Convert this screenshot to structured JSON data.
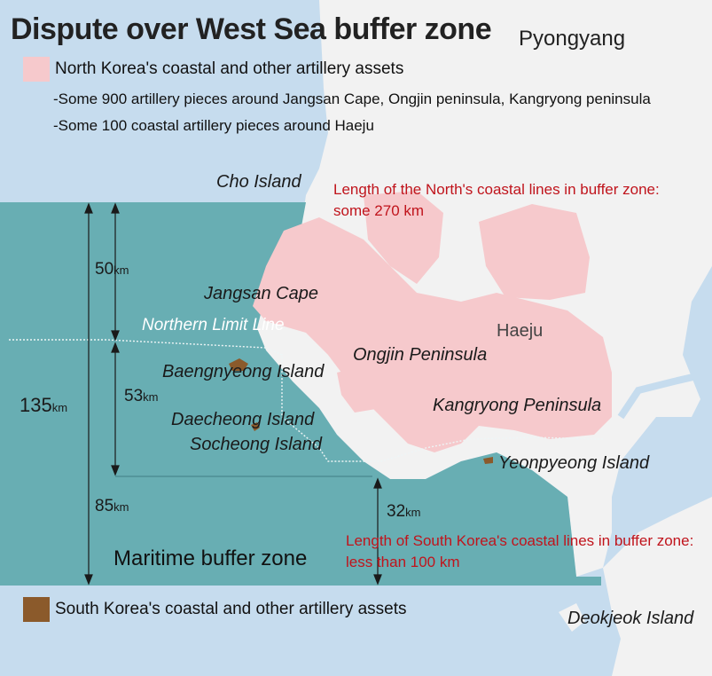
{
  "title": "Dispute over West Sea buffer zone",
  "cities": {
    "pyongyang": "Pyongyang",
    "haeju": "Haeju"
  },
  "legend": {
    "north": {
      "label": "North Korea's coastal and other artillery assets",
      "color": "#f6c9cc",
      "notes": [
        "-Some 900 artillery pieces around Jangsan Cape, Ongjin peninsula, Kangryong peninsula",
        "-Some 100 coastal artillery pieces around Haeju"
      ]
    },
    "south": {
      "label": "South Korea's coastal and other artillery assets",
      "color": "#8b5a2b"
    }
  },
  "places": {
    "cho_island": "Cho Island",
    "jangsan_cape": "Jangsan Cape",
    "northern_limit_line": "Northern Limit Line",
    "baengnyeong": "Baengnyeong Island",
    "daecheong": "Daecheong Island",
    "socheong": "Socheong Island",
    "ongjin": "Ongjin Peninsula",
    "kangryong": "Kangryong Peninsula",
    "yeonpyeong": "Yeonpyeong Island",
    "deokjeok": "Deokjeok Island"
  },
  "annotations": {
    "north_coast": [
      "Length of the North's coastal lines in buffer zone:",
      "some 270 km"
    ],
    "south_coast": [
      "Length of South Korea's coastal lines in buffer zone:",
      "less than 100 km"
    ]
  },
  "distances": {
    "total": {
      "value": "135",
      "unit": "km"
    },
    "north_part": {
      "value": "50",
      "unit": "km"
    },
    "nll_to_south_line": {
      "value": "53",
      "unit": "km"
    },
    "south_part": {
      "value": "85",
      "unit": "km"
    },
    "east_part": {
      "value": "32",
      "unit": "km"
    }
  },
  "zone_label": "Maritime buffer zone",
  "colors": {
    "sea": "#c6dcee",
    "land": "#f2f2f2",
    "buffer_zone": "#68aeb3",
    "north_artillery": "#f6c9cc",
    "south_artillery": "#8b5a2b",
    "annotation_red": "#c0141c"
  }
}
